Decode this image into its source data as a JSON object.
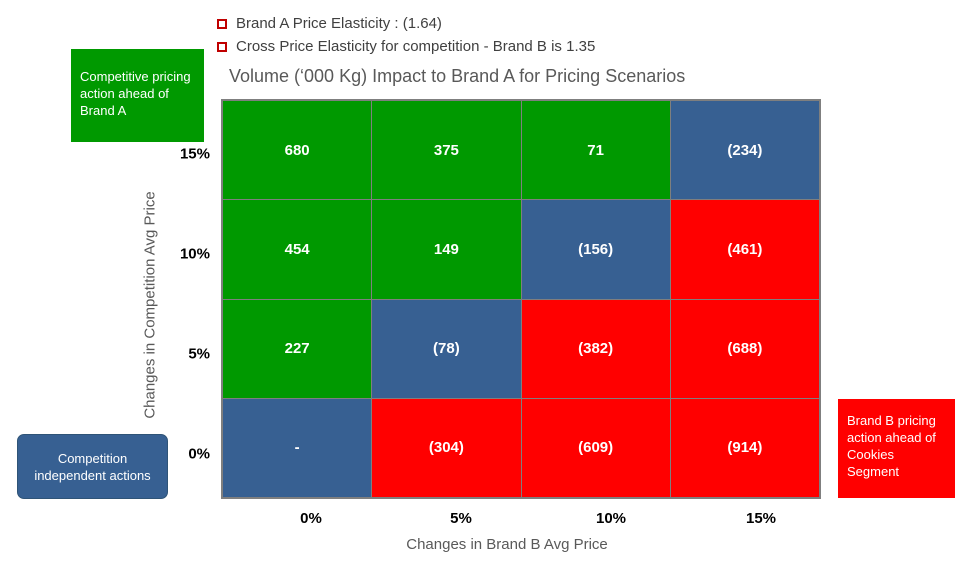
{
  "bullets": [
    "Brand A Price Elasticity : (1.64)",
    "Cross Price Elasticity for competition -  Brand B is 1.35"
  ],
  "callouts": {
    "green": "Competitive pricing action ahead of Brand A",
    "blue": "Competition independent actions",
    "red": "Brand B pricing action ahead of Cookies Segment"
  },
  "colors": {
    "green": "#009900",
    "blue": "#376092",
    "red": "#ff0000"
  },
  "chart_data": {
    "type": "heatmap",
    "title": "Volume (‘000 Kg) Impact to Brand A for Pricing Scenarios",
    "xlabel": "Changes in Brand B Avg Price",
    "ylabel": "Changes in Competition  Avg Price",
    "x": [
      "0%",
      "5%",
      "10%",
      "15%"
    ],
    "y": [
      "15%",
      "10%",
      "5%",
      "0%"
    ],
    "rows": [
      {
        "y": "15%",
        "cells": [
          {
            "label": "680",
            "color": "green"
          },
          {
            "label": "375",
            "color": "green"
          },
          {
            "label": "71",
            "color": "green"
          },
          {
            "label": "(234)",
            "color": "blue"
          }
        ]
      },
      {
        "y": "10%",
        "cells": [
          {
            "label": "454",
            "color": "green"
          },
          {
            "label": "149",
            "color": "green"
          },
          {
            "label": "(156)",
            "color": "blue"
          },
          {
            "label": "(461)",
            "color": "red"
          }
        ]
      },
      {
        "y": "5%",
        "cells": [
          {
            "label": "227",
            "color": "green"
          },
          {
            "label": "(78)",
            "color": "blue"
          },
          {
            "label": "(382)",
            "color": "red"
          },
          {
            "label": "(688)",
            "color": "red"
          }
        ]
      },
      {
        "y": "0%",
        "cells": [
          {
            "label": "-",
            "color": "blue"
          },
          {
            "label": "(304)",
            "color": "red"
          },
          {
            "label": "(609)",
            "color": "red"
          },
          {
            "label": "(914)",
            "color": "red"
          }
        ]
      }
    ]
  }
}
